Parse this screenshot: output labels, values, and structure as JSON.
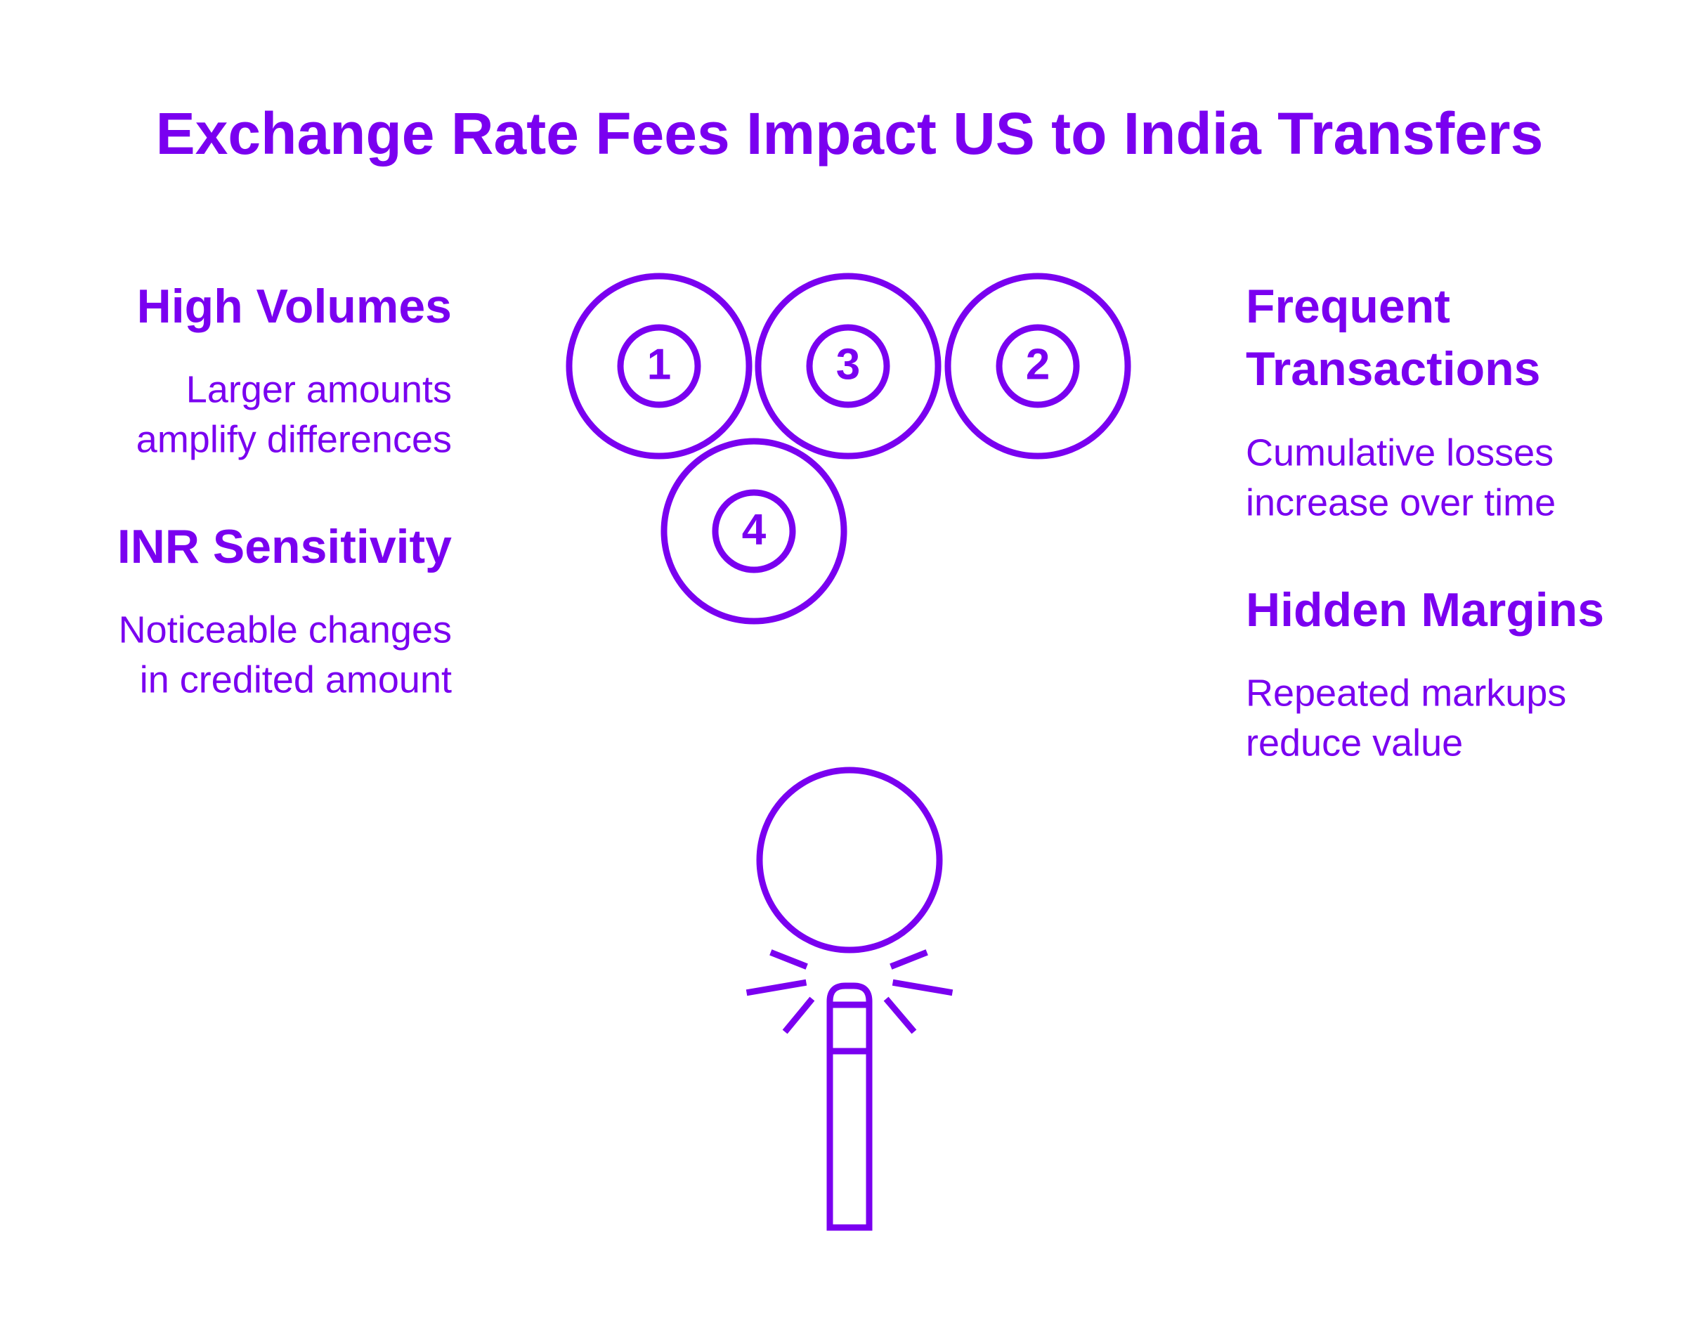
{
  "title": "Exchange Rate Fees Impact US to India Transfers",
  "items": [
    {
      "number": "1",
      "heading": [
        "High Volumes"
      ],
      "description": [
        "Larger amounts",
        "amplify differences"
      ]
    },
    {
      "number": "2",
      "heading": [
        "Frequent",
        "Transactions"
      ],
      "description": [
        "Cumulative losses",
        "increase over time"
      ]
    },
    {
      "number": "3",
      "heading": [
        "INR Sensitivity"
      ],
      "description": [
        "Noticeable changes",
        "in credited amount"
      ]
    },
    {
      "number": "4",
      "heading": [
        "Hidden Margins"
      ],
      "description": [
        "Repeated markups",
        "reduce value"
      ]
    }
  ]
}
